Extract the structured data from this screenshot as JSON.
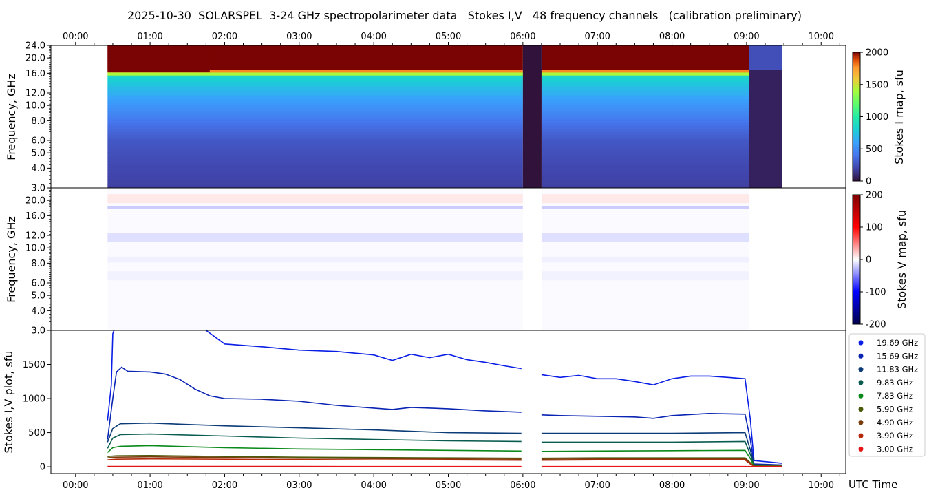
{
  "title": "2025-10-30  SOLARSPEL  3-24 GHz spectropolarimeter data   Stokes I,V   48 frequency channels   (calibration preliminary)",
  "time_ticks": [
    "00:00",
    "01:00",
    "02:00",
    "03:00",
    "04:00",
    "05:00",
    "06:00",
    "07:00",
    "08:00",
    "09:00",
    "10:00"
  ],
  "x_axis_label": "UTC Time",
  "chart_data": [
    {
      "type": "heatmap",
      "panel": "stokes-i-map",
      "ylabel": "Frequency, GHz",
      "yscale": "log",
      "ylim": [
        3.0,
        24.0
      ],
      "xlim_hours": [
        -0.33,
        10.33
      ],
      "yticks": [
        3.0,
        4.0,
        5.0,
        6.0,
        8.0,
        10.0,
        12.0,
        16.0,
        20.0,
        24.0
      ],
      "colorbar": {
        "label": "Stokes I map, sfu",
        "min": 0,
        "max": 2000,
        "ticks": [
          0,
          500,
          1000,
          1500,
          2000
        ],
        "colormap": "turbo"
      },
      "data_start_hour": 0.43,
      "data_end_hour": 9.48,
      "gap_hours": [
        6.0,
        6.25
      ],
      "post_drop_hour": 9.03
    },
    {
      "type": "heatmap",
      "panel": "stokes-v-map",
      "ylabel": "Frequency, GHz",
      "yscale": "log",
      "ylim": [
        3.0,
        24.0
      ],
      "yticks": [
        3.0,
        4.0,
        5.0,
        6.0,
        8.0,
        10.0,
        12.0,
        16.0,
        20.0
      ],
      "colorbar": {
        "label": "Stokes V map, sfu",
        "min": -200,
        "max": 200,
        "ticks": [
          -200,
          -100,
          0,
          100,
          200
        ],
        "colormap": "seismic"
      }
    },
    {
      "type": "scatter",
      "panel": "stokes-iv-plot",
      "ylabel": "Stokes I,V plot, sfu",
      "ylim": [
        -100,
        2000
      ],
      "yticks": [
        0,
        500,
        1000,
        1500
      ],
      "legend_position": "outside-right",
      "series": [
        {
          "name": "19.69 GHz",
          "color": "#0a1ee6",
          "points": [
            [
              0.43,
              680
            ],
            [
              0.48,
              1200
            ],
            [
              0.5,
              1950
            ],
            [
              0.55,
              2100
            ],
            [
              1.5,
              2100
            ],
            [
              1.75,
              2000
            ],
            [
              2.0,
              1800
            ],
            [
              2.5,
              1760
            ],
            [
              3.0,
              1710
            ],
            [
              3.5,
              1690
            ],
            [
              4.0,
              1640
            ],
            [
              4.25,
              1560
            ],
            [
              4.5,
              1650
            ],
            [
              4.75,
              1600
            ],
            [
              5.0,
              1650
            ],
            [
              5.25,
              1570
            ],
            [
              5.5,
              1530
            ],
            [
              5.75,
              1480
            ],
            [
              5.98,
              1440
            ],
            [
              6.25,
              1350
            ],
            [
              6.5,
              1310
            ],
            [
              6.75,
              1340
            ],
            [
              7.0,
              1290
            ],
            [
              7.25,
              1290
            ],
            [
              7.5,
              1250
            ],
            [
              7.75,
              1200
            ],
            [
              8.0,
              1290
            ],
            [
              8.25,
              1330
            ],
            [
              8.5,
              1330
            ],
            [
              8.75,
              1310
            ],
            [
              8.98,
              1290
            ],
            [
              9.05,
              700
            ],
            [
              9.1,
              90
            ],
            [
              9.3,
              70
            ],
            [
              9.48,
              50
            ]
          ]
        },
        {
          "name": "15.69 GHz",
          "color": "#0a24b4",
          "points": [
            [
              0.43,
              400
            ],
            [
              0.5,
              1000
            ],
            [
              0.55,
              1390
            ],
            [
              0.62,
              1460
            ],
            [
              0.7,
              1400
            ],
            [
              1.0,
              1390
            ],
            [
              1.2,
              1360
            ],
            [
              1.4,
              1280
            ],
            [
              1.6,
              1140
            ],
            [
              1.8,
              1040
            ],
            [
              2.0,
              1000
            ],
            [
              2.5,
              990
            ],
            [
              3.0,
              960
            ],
            [
              3.5,
              900
            ],
            [
              4.0,
              860
            ],
            [
              4.25,
              840
            ],
            [
              4.5,
              870
            ],
            [
              5.0,
              850
            ],
            [
              5.5,
              820
            ],
            [
              5.98,
              800
            ],
            [
              6.25,
              760
            ],
            [
              6.5,
              750
            ],
            [
              7.0,
              740
            ],
            [
              7.5,
              730
            ],
            [
              7.75,
              710
            ],
            [
              8.0,
              750
            ],
            [
              8.5,
              780
            ],
            [
              8.98,
              770
            ],
            [
              9.05,
              400
            ],
            [
              9.1,
              40
            ],
            [
              9.48,
              25
            ]
          ]
        },
        {
          "name": "11.83 GHz",
          "color": "#0c3c78",
          "points": [
            [
              0.43,
              360
            ],
            [
              0.5,
              560
            ],
            [
              0.6,
              630
            ],
            [
              1.0,
              640
            ],
            [
              2.0,
              600
            ],
            [
              3.0,
              570
            ],
            [
              4.0,
              540
            ],
            [
              5.0,
              500
            ],
            [
              5.98,
              490
            ],
            [
              6.25,
              490
            ],
            [
              7.0,
              490
            ],
            [
              8.0,
              490
            ],
            [
              8.98,
              500
            ],
            [
              9.05,
              250
            ],
            [
              9.1,
              30
            ],
            [
              9.48,
              20
            ]
          ]
        },
        {
          "name": "9.83 GHz",
          "color": "#0a5c50",
          "points": [
            [
              0.43,
              270
            ],
            [
              0.5,
              420
            ],
            [
              0.6,
              470
            ],
            [
              1.0,
              480
            ],
            [
              2.0,
              450
            ],
            [
              3.0,
              420
            ],
            [
              4.0,
              400
            ],
            [
              5.0,
              380
            ],
            [
              5.98,
              370
            ],
            [
              6.25,
              360
            ],
            [
              7.0,
              360
            ],
            [
              8.0,
              360
            ],
            [
              8.98,
              370
            ],
            [
              9.05,
              180
            ],
            [
              9.1,
              20
            ],
            [
              9.48,
              15
            ]
          ]
        },
        {
          "name": "7.83 GHz",
          "color": "#0a8a1a",
          "points": [
            [
              0.43,
              210
            ],
            [
              0.5,
              280
            ],
            [
              0.6,
              300
            ],
            [
              1.0,
              310
            ],
            [
              2.0,
              280
            ],
            [
              3.0,
              260
            ],
            [
              4.0,
              250
            ],
            [
              5.0,
              240
            ],
            [
              5.98,
              230
            ],
            [
              6.25,
              225
            ],
            [
              7.0,
              230
            ],
            [
              8.0,
              235
            ],
            [
              8.98,
              240
            ],
            [
              9.05,
              120
            ],
            [
              9.1,
              15
            ],
            [
              9.48,
              10
            ]
          ]
        },
        {
          "name": "5.90 GHz",
          "color": "#4a5a0a",
          "points": [
            [
              0.43,
              150
            ],
            [
              0.55,
              160
            ],
            [
              1.0,
              165
            ],
            [
              2.0,
              150
            ],
            [
              3.0,
              140
            ],
            [
              4.0,
              135
            ],
            [
              5.0,
              130
            ],
            [
              5.98,
              125
            ],
            [
              6.25,
              125
            ],
            [
              7.0,
              130
            ],
            [
              8.0,
              130
            ],
            [
              8.98,
              130
            ],
            [
              9.05,
              60
            ],
            [
              9.1,
              10
            ],
            [
              9.48,
              8
            ]
          ]
        },
        {
          "name": "4.90 GHz",
          "color": "#7a3c0a",
          "points": [
            [
              0.43,
              130
            ],
            [
              0.55,
              140
            ],
            [
              1.0,
              145
            ],
            [
              2.0,
              135
            ],
            [
              3.0,
              125
            ],
            [
              4.0,
              120
            ],
            [
              5.0,
              115
            ],
            [
              5.98,
              110
            ],
            [
              6.25,
              110
            ],
            [
              7.0,
              115
            ],
            [
              8.0,
              115
            ],
            [
              8.98,
              115
            ],
            [
              9.05,
              50
            ],
            [
              9.1,
              8
            ],
            [
              9.48,
              6
            ]
          ]
        },
        {
          "name": "3.90 GHz",
          "color": "#b42a0a",
          "points": [
            [
              0.43,
              100
            ],
            [
              0.55,
              110
            ],
            [
              1.0,
              115
            ],
            [
              2.0,
              110
            ],
            [
              3.0,
              105
            ],
            [
              4.0,
              100
            ],
            [
              5.0,
              100
            ],
            [
              5.98,
              95
            ],
            [
              6.25,
              95
            ],
            [
              7.0,
              100
            ],
            [
              8.0,
              100
            ],
            [
              8.98,
              100
            ],
            [
              9.05,
              40
            ],
            [
              9.1,
              6
            ],
            [
              9.48,
              5
            ]
          ]
        },
        {
          "name": "3.00 GHz",
          "color": "#e61414",
          "points": [
            [
              0.43,
              5
            ],
            [
              1.0,
              6
            ],
            [
              2.0,
              5
            ],
            [
              3.0,
              5
            ],
            [
              4.0,
              4
            ],
            [
              5.0,
              4
            ],
            [
              5.98,
              4
            ],
            [
              6.25,
              4
            ],
            [
              7.0,
              4
            ],
            [
              8.0,
              4
            ],
            [
              8.98,
              4
            ],
            [
              9.1,
              3
            ],
            [
              9.48,
              3
            ]
          ]
        }
      ]
    }
  ]
}
